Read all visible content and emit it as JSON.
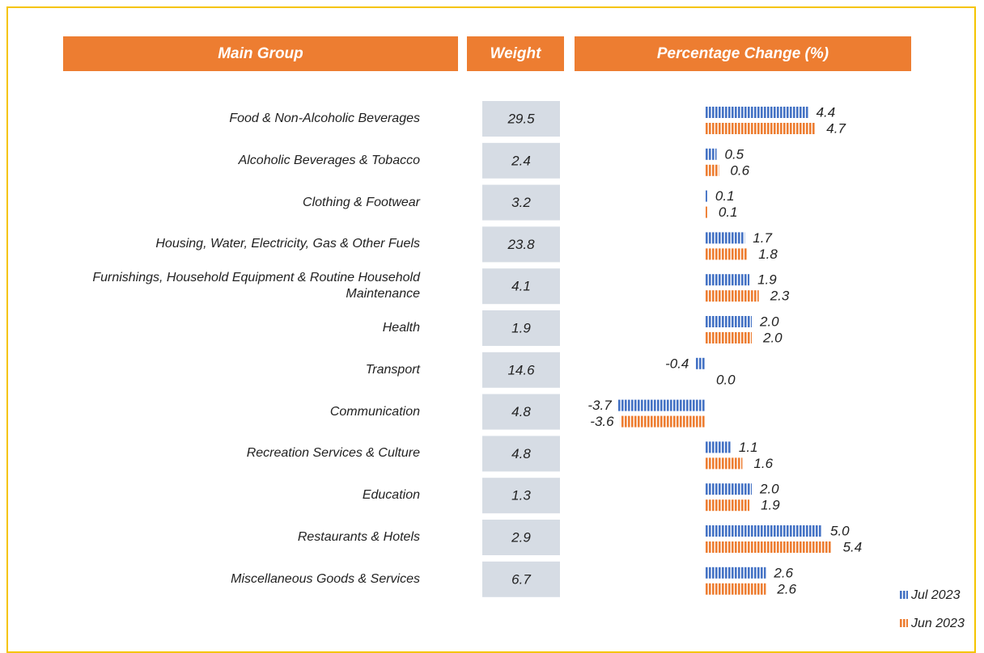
{
  "chart_data": {
    "type": "bar",
    "orientation": "horizontal",
    "headers": [
      "Main Group",
      "Weight",
      "Percentage Change (%)"
    ],
    "categories": [
      "Food & Non-Alcoholic Beverages",
      "Alcoholic Beverages & Tobacco",
      "Clothing & Footwear",
      "Housing, Water, Electricity, Gas & Other Fuels",
      "Furnishings, Household Equipment & Routine Household Maintenance",
      "Health",
      "Transport",
      "Communication",
      "Recreation Services & Culture",
      "Education",
      "Restaurants & Hotels",
      "Miscellaneous Goods & Services"
    ],
    "weights": [
      29.5,
      2.4,
      3.2,
      23.8,
      4.1,
      1.9,
      14.6,
      4.8,
      4.8,
      1.3,
      2.9,
      6.7
    ],
    "series": [
      {
        "name": "Jul 2023",
        "color": "#4472C4",
        "values": [
          4.4,
          0.5,
          0.1,
          1.7,
          1.9,
          2.0,
          -0.4,
          -3.7,
          1.1,
          2.0,
          5.0,
          2.6
        ],
        "value_labels": [
          "4.4",
          "0.5",
          "0.1",
          "1.7",
          "1.9",
          "2.0",
          "-0.4",
          "-3.7",
          "1.1",
          "2.0",
          "5.0",
          "2.6"
        ]
      },
      {
        "name": "Jun 2023",
        "color": "#ED7D31",
        "values": [
          4.7,
          0.6,
          0.1,
          1.8,
          2.3,
          2.0,
          0,
          -3.6,
          1.6,
          1.9,
          5.4,
          2.6
        ],
        "value_labels": [
          "4.7",
          "0.6",
          "0.1",
          "1.8",
          "2.3",
          "2.0",
          "0.0",
          "-3.6",
          "1.6",
          "1.9",
          "5.4",
          "2.6"
        ]
      }
    ],
    "xlim": [
      -4,
      6
    ]
  }
}
